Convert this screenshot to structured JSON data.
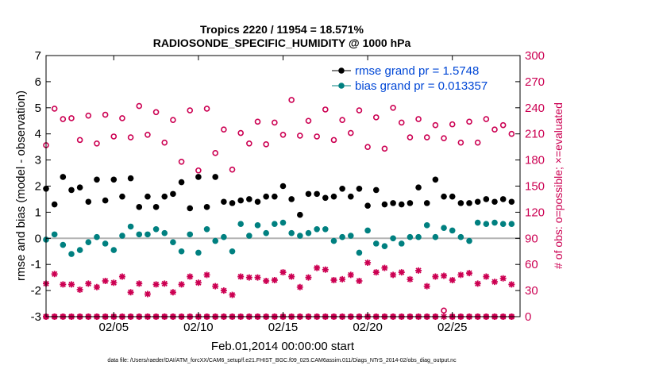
{
  "chart_data": {
    "type": "scatter",
    "title": "Tropics 2220 / 11954 = 18.571%",
    "subtitle": "RADIOSONDE_SPECIFIC_HUMIDITY @ 1000 hPa",
    "xlabel": "Feb.01,2014 00:00:00 start",
    "ylabel": "rmse and bias (model - observation)",
    "ylabel_right": "# of obs: o=possible; ×=evaluated",
    "footnote": "data file: /Users/raeder/DAI/ATM_forcXX/CAM6_setup/f.e21.FHIST_BGC.f09_025.CAM6assim.011/Diags_NTrS_2014-02/obs_diag_output.nc",
    "xlim": [
      1,
      29
    ],
    "x_ticks": [
      5,
      10,
      15,
      20,
      25
    ],
    "x_tick_labels": [
      "02/05",
      "02/10",
      "02/15",
      "02/20",
      "02/25"
    ],
    "ylim": [
      -3,
      7
    ],
    "y_ticks": [
      -3,
      -2,
      -1,
      0,
      1,
      2,
      3,
      4,
      5,
      6,
      7
    ],
    "ylim_right": [
      0,
      300
    ],
    "y_ticks_right": [
      0,
      30,
      60,
      90,
      120,
      150,
      180,
      210,
      240,
      270,
      300
    ],
    "grid": false,
    "zero_line": 0,
    "legend_position": "top-right",
    "colors": {
      "rmse": "#000000",
      "bias": "#008080",
      "counts": "#cc0052",
      "zero_line": "#b4b4b4"
    },
    "x": [
      1.0,
      1.5,
      2.0,
      2.5,
      3.0,
      3.5,
      4.0,
      4.5,
      5.0,
      5.5,
      6.0,
      6.5,
      7.0,
      7.5,
      8.0,
      8.5,
      9.0,
      9.5,
      10.0,
      10.5,
      11.0,
      11.5,
      12.0,
      12.5,
      13.0,
      13.5,
      14.0,
      14.5,
      15.0,
      15.5,
      16.0,
      16.5,
      17.0,
      17.5,
      18.0,
      18.5,
      19.0,
      19.5,
      20.0,
      20.5,
      21.0,
      21.5,
      22.0,
      22.5,
      23.0,
      23.5,
      24.0,
      24.5,
      25.0,
      25.5,
      26.0,
      26.5,
      27.0,
      27.5,
      28.0,
      28.5
    ],
    "series": [
      {
        "name": "rmse grand pr = 1.5748",
        "axis": "left",
        "marker": "filled-circle-line",
        "values": [
          1.9,
          1.3,
          2.35,
          1.85,
          1.95,
          1.4,
          2.25,
          1.45,
          2.25,
          1.6,
          2.3,
          1.2,
          1.6,
          1.2,
          1.6,
          1.7,
          2.15,
          1.15,
          2.35,
          1.2,
          2.35,
          1.4,
          1.35,
          1.45,
          1.5,
          1.4,
          1.6,
          1.6,
          2.0,
          1.5,
          0.9,
          1.7,
          1.7,
          1.55,
          1.6,
          1.9,
          1.6,
          1.9,
          1.25,
          1.85,
          1.3,
          1.35,
          1.3,
          1.35,
          1.95,
          1.35,
          2.25,
          1.6,
          1.6,
          1.35,
          1.35,
          1.4,
          1.5,
          1.4,
          1.5,
          1.4
        ]
      },
      {
        "name": "bias grand pr = 0.013357",
        "axis": "left",
        "marker": "filled-circle-line",
        "values": [
          -0.05,
          0.15,
          -0.25,
          -0.6,
          -0.45,
          -0.15,
          0.05,
          -0.2,
          -0.45,
          0.1,
          0.45,
          0.15,
          0.15,
          0.35,
          0.2,
          -0.15,
          -0.5,
          0.15,
          -0.55,
          0.35,
          -0.1,
          0.05,
          -0.5,
          0.55,
          0.1,
          0.5,
          0.2,
          0.55,
          0.6,
          0.2,
          0.1,
          0.2,
          0.35,
          0.35,
          -0.1,
          0.05,
          0.1,
          -0.55,
          0.3,
          -0.2,
          -0.3,
          0.0,
          -0.2,
          0.05,
          0.05,
          0.5,
          0.05,
          0.4,
          0.3,
          0.05,
          -0.1,
          0.6,
          0.55,
          0.6,
          0.55,
          0.55
        ]
      },
      {
        "name": "possible",
        "axis": "right",
        "marker": "open-circle",
        "values": [
          197,
          239,
          227,
          228,
          203,
          231,
          199,
          232,
          207,
          228,
          206,
          242,
          209,
          235,
          200,
          226,
          178,
          237,
          168,
          239,
          188,
          215,
          169,
          211,
          199,
          224,
          198,
          223,
          209,
          249,
          208,
          225,
          207,
          238,
          203,
          226,
          211,
          237,
          195,
          229,
          193,
          240,
          223,
          206,
          227,
          206,
          220,
          205,
          221,
          200,
          224,
          200,
          227,
          215,
          220,
          210
        ]
      },
      {
        "name": "evaluated",
        "axis": "right",
        "marker": "asterisk",
        "values": [
          38,
          49,
          37,
          37,
          31,
          38,
          34,
          41,
          39,
          46,
          28,
          38,
          26,
          37,
          38,
          28,
          37,
          46,
          39,
          48,
          35,
          30,
          25,
          46,
          45,
          45,
          41,
          42,
          51,
          46,
          34,
          45,
          56,
          54,
          42,
          43,
          48,
          41,
          62,
          51,
          56,
          48,
          51,
          43,
          53,
          35,
          46,
          47,
          42,
          48,
          50,
          38,
          46,
          40,
          44,
          37
        ]
      },
      {
        "name": "possible-zero",
        "axis": "right",
        "marker": "open-circle",
        "values": [
          0,
          0,
          0,
          0,
          0,
          0,
          0,
          0,
          0,
          0,
          0,
          0,
          0,
          0,
          0,
          0,
          0,
          0,
          0,
          0,
          0,
          0,
          0,
          0,
          0,
          0,
          0,
          0,
          0,
          0,
          0,
          0,
          0,
          0,
          0,
          0,
          0,
          0,
          0,
          0,
          0,
          0,
          0,
          0,
          0,
          0,
          0,
          7,
          0,
          0,
          0,
          0,
          0,
          0,
          0,
          0
        ]
      },
      {
        "name": "evaluated-zero",
        "axis": "right",
        "marker": "asterisk",
        "values": [
          0,
          0,
          0,
          0,
          0,
          0,
          0,
          0,
          0,
          0,
          0,
          0,
          0,
          0,
          0,
          0,
          0,
          0,
          0,
          0,
          0,
          0,
          0,
          0,
          0,
          0,
          0,
          0,
          0,
          0,
          0,
          0,
          0,
          0,
          0,
          0,
          0,
          0,
          0,
          0,
          0,
          0,
          0,
          0,
          0,
          0,
          0,
          0,
          0,
          0,
          0,
          0,
          0,
          0,
          0,
          0
        ]
      }
    ]
  }
}
